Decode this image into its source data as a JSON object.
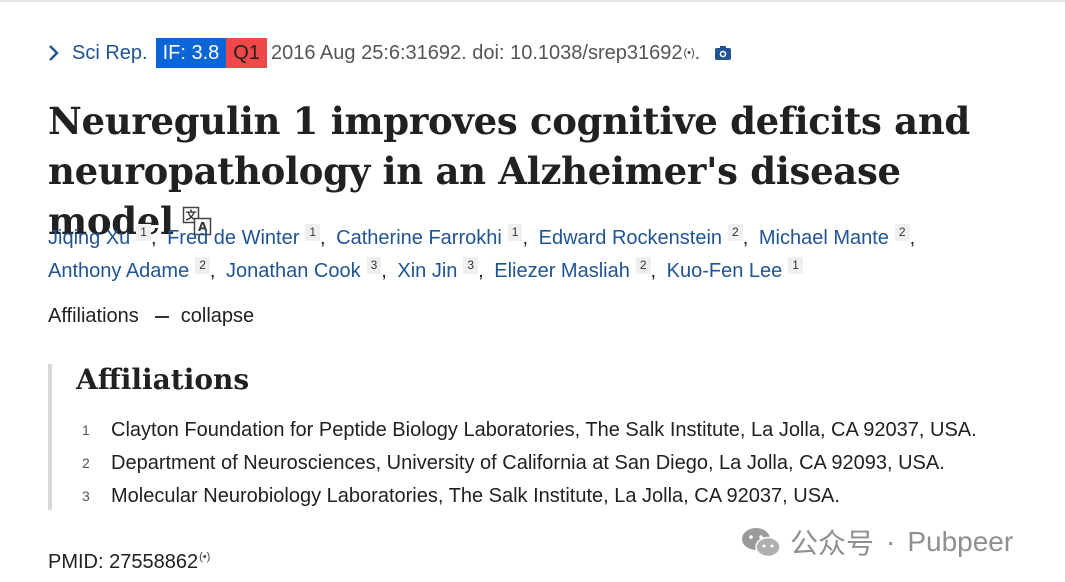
{
  "citation": {
    "journal": "Sci Rep.",
    "impact_factor": "IF: 3.8",
    "quartile": "Q1",
    "details": "2016 Aug 25:6:31692. doi: 10.1038/srep31692",
    "colors": {
      "if_bg": "#0a66d6",
      "q_bg": "#f04848",
      "link": "#205493"
    }
  },
  "title": "Neuregulin 1 improves cognitive deficits and neuropathology in an Alzheimer's disease model",
  "authors": [
    {
      "name": "Jiqing Xu",
      "aff": "1"
    },
    {
      "name": "Fred de Winter",
      "aff": "1"
    },
    {
      "name": "Catherine Farrokhi",
      "aff": "1"
    },
    {
      "name": "Edward Rockenstein",
      "aff": "2"
    },
    {
      "name": "Michael Mante",
      "aff": "2"
    },
    {
      "name": "Anthony Adame",
      "aff": "2"
    },
    {
      "name": "Jonathan Cook",
      "aff": "3"
    },
    {
      "name": "Xin Jin",
      "aff": "3"
    },
    {
      "name": "Eliezer Masliah",
      "aff": "2"
    },
    {
      "name": "Kuo-Fen Lee",
      "aff": "1"
    }
  ],
  "affiliations_toggle": {
    "label": "Affiliations",
    "action": "collapse"
  },
  "affiliations": {
    "heading": "Affiliations",
    "items": [
      {
        "num": "1",
        "text": "Clayton Foundation for Peptide Biology Laboratories, The Salk Institute, La Jolla, CA 92037, USA."
      },
      {
        "num": "2",
        "text": "Department of Neurosciences, University of California at San Diego, La Jolla, CA 92093, USA."
      },
      {
        "num": "3",
        "text": "Molecular Neurobiology Laboratories, The Salk Institute, La Jolla, CA 92037, USA."
      }
    ]
  },
  "pmid": "PMID: 27558862",
  "watermark": {
    "text1": "公众号",
    "separator": "·",
    "text2": "Pubpeer"
  },
  "icons": {
    "journal": "chevron-right-icon",
    "audio": "radio-wave-icon",
    "camera": "camera-icon",
    "translate": "translate-icon",
    "watermark": "wechat-icon"
  }
}
